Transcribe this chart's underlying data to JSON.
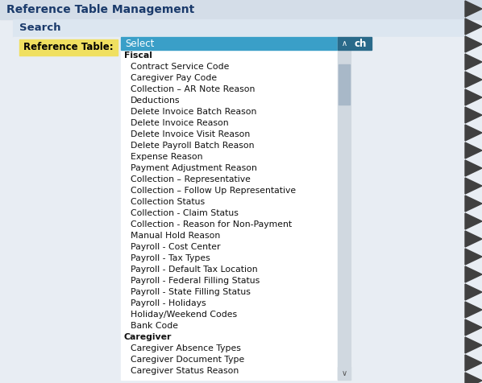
{
  "title": "Reference Table Management",
  "title_color": "#1a3a6b",
  "title_bg": "#d4dde8",
  "search_label": "Search",
  "search_label_color": "#1a3a6b",
  "search_bg": "#dce6f0",
  "ref_table_label": "Reference Table:",
  "ref_table_label_bg": "#f0e060",
  "select_text": "Select",
  "select_bg": "#3a9fc8",
  "select_text_color": "#ffffff",
  "dropdown_bg": "#ffffff",
  "dropdown_border": "#555555",
  "scrollbar_bg": "#d0d8e0",
  "search_btn_bg": "#2a6a8a",
  "search_btn_text": "ch",
  "search_btn_text_color": "#ffffff",
  "page_bg": "#e8edf3",
  "items": [
    {
      "text": "Fiscal",
      "bold": true,
      "indent": false
    },
    {
      "text": "Contract Service Code",
      "bold": false,
      "indent": true
    },
    {
      "text": "Caregiver Pay Code",
      "bold": false,
      "indent": true
    },
    {
      "text": "Collection – AR Note Reason",
      "bold": false,
      "indent": true
    },
    {
      "text": "Deductions",
      "bold": false,
      "indent": true
    },
    {
      "text": "Delete Invoice Batch Reason",
      "bold": false,
      "indent": true
    },
    {
      "text": "Delete Invoice Reason",
      "bold": false,
      "indent": true
    },
    {
      "text": "Delete Invoice Visit Reason",
      "bold": false,
      "indent": true
    },
    {
      "text": "Delete Payroll Batch Reason",
      "bold": false,
      "indent": true
    },
    {
      "text": "Expense Reason",
      "bold": false,
      "indent": true
    },
    {
      "text": "Payment Adjustment Reason",
      "bold": false,
      "indent": true
    },
    {
      "text": "Collection – Representative",
      "bold": false,
      "indent": true
    },
    {
      "text": "Collection – Follow Up Representative",
      "bold": false,
      "indent": true
    },
    {
      "text": "Collection Status",
      "bold": false,
      "indent": true
    },
    {
      "text": "Collection - Claim Status",
      "bold": false,
      "indent": true
    },
    {
      "text": "Collection - Reason for Non-Payment",
      "bold": false,
      "indent": true
    },
    {
      "text": "Manual Hold Reason",
      "bold": false,
      "indent": true
    },
    {
      "text": "Payroll - Cost Center",
      "bold": false,
      "indent": true
    },
    {
      "text": "Payroll - Tax Types",
      "bold": false,
      "indent": true
    },
    {
      "text": "Payroll - Default Tax Location",
      "bold": false,
      "indent": true
    },
    {
      "text": "Payroll - Federal Filling Status",
      "bold": false,
      "indent": true
    },
    {
      "text": "Payroll - State Filling Status",
      "bold": false,
      "indent": true
    },
    {
      "text": "Payroll - Holidays",
      "bold": false,
      "indent": true
    },
    {
      "text": "Holiday/Weekend Codes",
      "bold": false,
      "indent": true
    },
    {
      "text": "Bank Code",
      "bold": false,
      "indent": true
    },
    {
      "text": "Caregiver",
      "bold": true,
      "indent": false
    },
    {
      "text": "Caregiver Absence Types",
      "bold": false,
      "indent": true
    },
    {
      "text": "Caregiver Document Type",
      "bold": false,
      "indent": true
    },
    {
      "text": "Caregiver Status Reason",
      "bold": false,
      "indent": true
    }
  ]
}
